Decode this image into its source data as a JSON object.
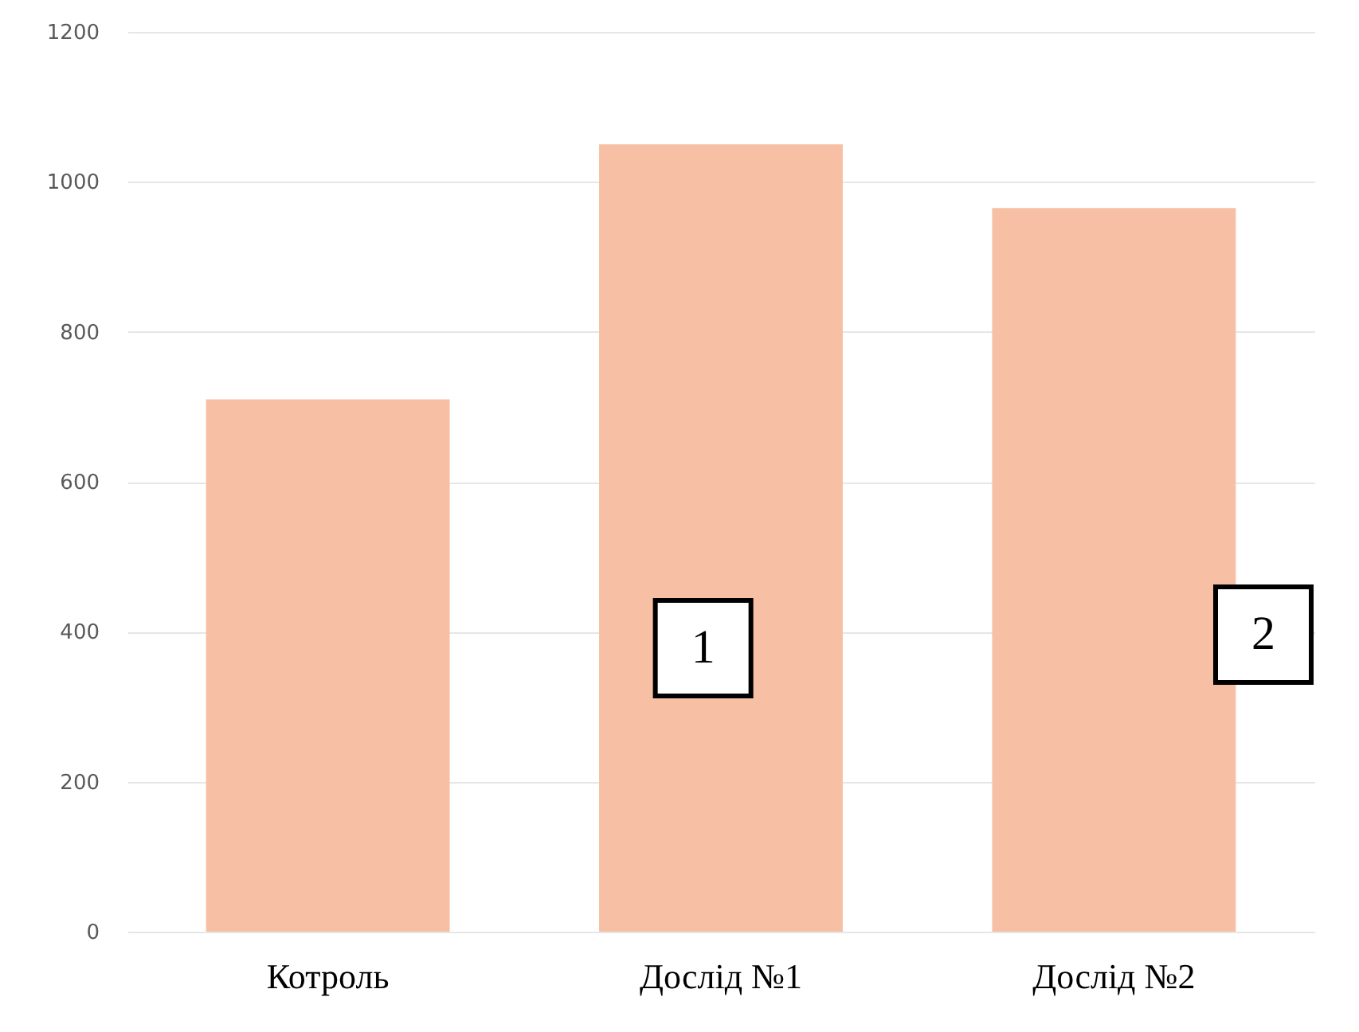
{
  "chart_data": {
    "type": "bar",
    "categories": [
      "Котроль",
      "Дослід №1",
      "Дослід №2"
    ],
    "values": [
      710,
      1050,
      965
    ],
    "color": "#f7c0a4",
    "ylim": [
      0,
      1200
    ],
    "yticks": [
      0,
      200,
      400,
      600,
      800,
      1000,
      1200
    ],
    "grid": "y",
    "annotations": [
      "1",
      "2"
    ]
  }
}
